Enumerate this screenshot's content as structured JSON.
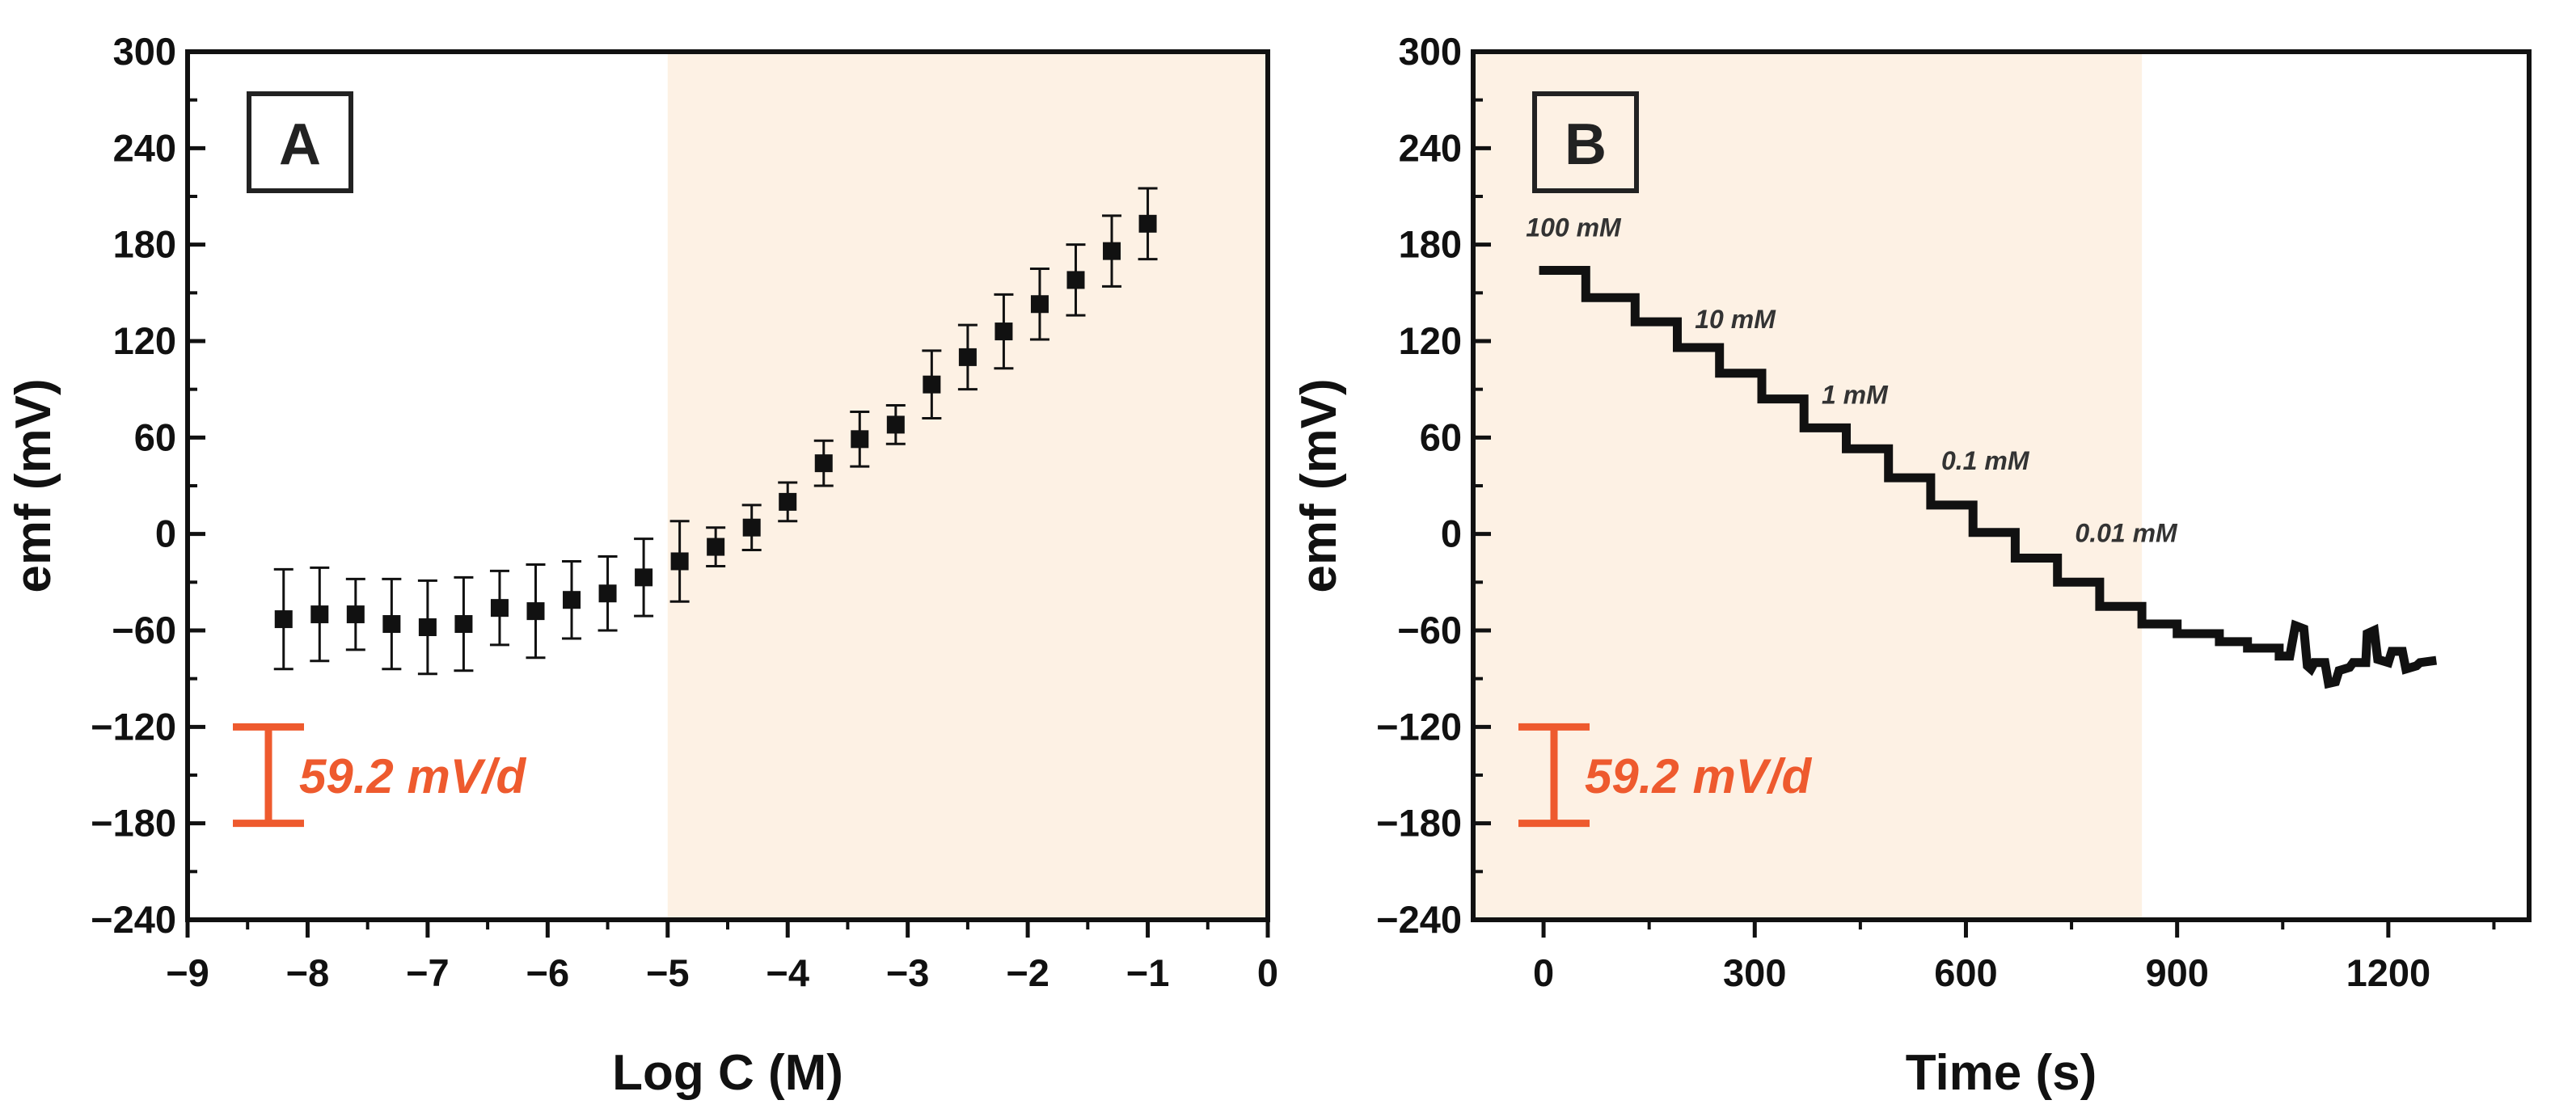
{
  "colors": {
    "shade": "#fdf1e4",
    "accent": "#ee5a2e",
    "ink": "#111111"
  },
  "chart_data": [
    {
      "id": "A",
      "type": "scatter",
      "panel_label": "A",
      "xlabel": "Log C (M)",
      "ylabel": "emf (mV)",
      "xlim": [
        -9,
        0
      ],
      "ylim": [
        -240,
        300
      ],
      "xticks": [
        -9,
        -8,
        -7,
        -6,
        -5,
        -4,
        -3,
        -2,
        -1,
        0
      ],
      "xtick_labels": [
        "−9",
        "−8",
        "−7",
        "−6",
        "−5",
        "−4",
        "−3",
        "−2",
        "−1",
        "0"
      ],
      "yticks": [
        -240,
        -180,
        -120,
        -60,
        0,
        60,
        120,
        180,
        240,
        300
      ],
      "ytick_labels": [
        "−240",
        "−180",
        "−120",
        "−60",
        "0",
        "60",
        "120",
        "180",
        "240",
        "300"
      ],
      "shaded_region_x": [
        -5,
        0
      ],
      "scale_bar": {
        "text": "59.2 mV/d",
        "y_from": -180,
        "y_to": -120
      },
      "points": [
        {
          "x": -8.2,
          "y": -53,
          "err": 31
        },
        {
          "x": -7.9,
          "y": -50,
          "err": 29
        },
        {
          "x": -7.6,
          "y": -50,
          "err": 22
        },
        {
          "x": -7.3,
          "y": -56,
          "err": 28
        },
        {
          "x": -7.0,
          "y": -58,
          "err": 29
        },
        {
          "x": -6.7,
          "y": -56,
          "err": 29
        },
        {
          "x": -6.4,
          "y": -46,
          "err": 23
        },
        {
          "x": -6.1,
          "y": -48,
          "err": 29
        },
        {
          "x": -5.8,
          "y": -41,
          "err": 24
        },
        {
          "x": -5.5,
          "y": -37,
          "err": 23
        },
        {
          "x": -5.2,
          "y": -27,
          "err": 24
        },
        {
          "x": -4.9,
          "y": -17,
          "err": 25
        },
        {
          "x": -4.6,
          "y": -8,
          "err": 12
        },
        {
          "x": -4.3,
          "y": 4,
          "err": 14
        },
        {
          "x": -4.0,
          "y": 20,
          "err": 12
        },
        {
          "x": -3.7,
          "y": 44,
          "err": 14
        },
        {
          "x": -3.4,
          "y": 59,
          "err": 17
        },
        {
          "x": -3.1,
          "y": 68,
          "err": 12
        },
        {
          "x": -2.8,
          "y": 93,
          "err": 21
        },
        {
          "x": -2.5,
          "y": 110,
          "err": 20
        },
        {
          "x": -2.2,
          "y": 126,
          "err": 23
        },
        {
          "x": -1.9,
          "y": 143,
          "err": 22
        },
        {
          "x": -1.6,
          "y": 158,
          "err": 22
        },
        {
          "x": -1.3,
          "y": 176,
          "err": 22
        },
        {
          "x": -1.0,
          "y": 193,
          "err": 22
        }
      ]
    },
    {
      "id": "B",
      "type": "line",
      "panel_label": "B",
      "xlabel": "Time (s)",
      "ylabel": "emf (mV)",
      "xlim": [
        -100,
        1400
      ],
      "ylim": [
        -240,
        300
      ],
      "xticks": [
        0,
        300,
        600,
        900,
        1200
      ],
      "xtick_labels": [
        "0",
        "300",
        "600",
        "900",
        "1200"
      ],
      "yticks": [
        -240,
        -180,
        -120,
        -60,
        0,
        60,
        120,
        180,
        240,
        300
      ],
      "ytick_labels": [
        "−240",
        "−180",
        "−120",
        "−60",
        "0",
        "60",
        "120",
        "180",
        "240",
        "300"
      ],
      "shaded_region_x": [
        -100,
        850
      ],
      "scale_bar": {
        "text": "59.2 mV/d",
        "y_from": -180,
        "y_to": -120
      },
      "annotations": [
        {
          "text": "100 mM",
          "x": -25,
          "y": 185
        },
        {
          "text": "10 mM",
          "x": 215,
          "y": 128
        },
        {
          "text": "1 mM",
          "x": 395,
          "y": 81
        },
        {
          "text": "0.1 mM",
          "x": 565,
          "y": 40
        },
        {
          "text": "0.01 mM",
          "x": 755,
          "y": -5
        }
      ],
      "series": [
        {
          "x": [
            0,
            60,
            60,
            130,
            130,
            190,
            190,
            250,
            250,
            310,
            310,
            370,
            370,
            430,
            430,
            490,
            490,
            550,
            550,
            610,
            610,
            670,
            670,
            730,
            730,
            790,
            790,
            850,
            850,
            900,
            900,
            960,
            960,
            1000,
            1000,
            1045,
            1045,
            1060,
            1068,
            1080,
            1085,
            1090,
            1095,
            1110,
            1115,
            1125,
            1130,
            1145,
            1150,
            1168,
            1170,
            1180,
            1185,
            1200,
            1205,
            1220,
            1225,
            1240,
            1245,
            1262
          ],
          "y": [
            164,
            164,
            147,
            147,
            132,
            132,
            116,
            116,
            100,
            100,
            84,
            84,
            66,
            66,
            53,
            53,
            35,
            35,
            18,
            18,
            1,
            1,
            -15,
            -15,
            -30,
            -30,
            -45,
            -45,
            -56,
            -56,
            -62,
            -62,
            -67,
            -67,
            -71,
            -71,
            -76,
            -76,
            -57,
            -59,
            -82,
            -84,
            -80,
            -80,
            -93,
            -92,
            -85,
            -83,
            -80,
            -80,
            -62,
            -60,
            -78,
            -80,
            -73,
            -73,
            -84,
            -82,
            -80,
            -79
          ]
        }
      ]
    }
  ]
}
